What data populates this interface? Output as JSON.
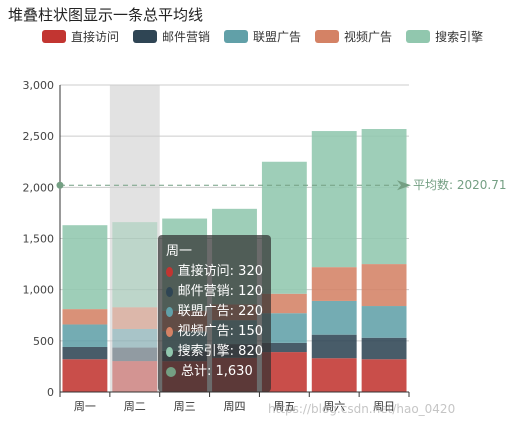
{
  "title": "堆叠柱状图显示一条总平均线",
  "legend": [
    {
      "label": "直接访问",
      "color": "#c23531"
    },
    {
      "label": "邮件营销",
      "color": "#2f4554"
    },
    {
      "label": "联盟广告",
      "color": "#61a0a8"
    },
    {
      "label": "视频广告",
      "color": "#d48265"
    },
    {
      "label": "搜索引擎",
      "color": "#91c7ae"
    }
  ],
  "chart_data": {
    "type": "bar",
    "stacked": true,
    "categories": [
      "周一",
      "周二",
      "周三",
      "周四",
      "周五",
      "周六",
      "周日"
    ],
    "series": [
      {
        "name": "直接访问",
        "color": "#c23531",
        "values": [
          320,
          302,
          301,
          334,
          390,
          330,
          320
        ]
      },
      {
        "name": "邮件营销",
        "color": "#2f4554",
        "values": [
          120,
          132,
          101,
          134,
          90,
          230,
          210
        ]
      },
      {
        "name": "联盟广告",
        "color": "#61a0a8",
        "values": [
          220,
          182,
          191,
          234,
          290,
          330,
          310
        ]
      },
      {
        "name": "视频广告",
        "color": "#d48265",
        "values": [
          150,
          212,
          201,
          154,
          190,
          330,
          410
        ]
      },
      {
        "name": "搜索引擎",
        "color": "#91c7ae",
        "values": [
          820,
          832,
          901,
          934,
          1290,
          1330,
          1320
        ]
      }
    ],
    "ylim": [
      0,
      3000
    ],
    "yticks": [
      0,
      500,
      1000,
      1500,
      2000,
      2500,
      3000
    ],
    "ytick_labels": [
      "0",
      "500",
      "1,000",
      "1,500",
      "2,000",
      "2,500",
      "3,000"
    ],
    "average": {
      "value": 2020.71,
      "label": "平均数: 2020.71",
      "color": "#749f83"
    },
    "grid": true,
    "highlighted_category": "周二"
  },
  "tooltip": {
    "header": "周一",
    "rows": [
      {
        "text": "直接访问: 320",
        "color": "#c23531"
      },
      {
        "text": "邮件营销: 120",
        "color": "#2f4554"
      },
      {
        "text": "联盟广告: 220",
        "color": "#61a0a8"
      },
      {
        "text": "视频广告: 150",
        "color": "#d48265"
      },
      {
        "text": "搜索引擎: 820",
        "color": "#91c7ae"
      },
      {
        "text": "总计: 1,630",
        "color": "#749f83"
      }
    ]
  },
  "watermark": "https://blog.csdn.net/hao_0420"
}
